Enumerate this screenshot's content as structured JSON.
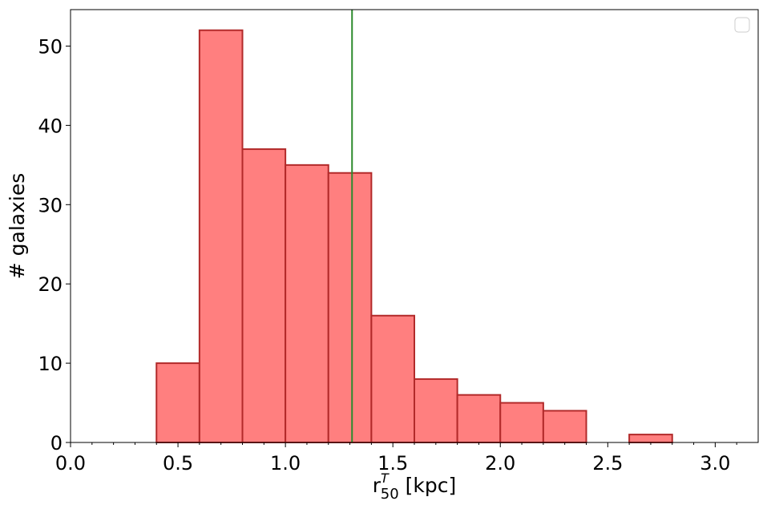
{
  "chart_data": {
    "type": "bar",
    "subtype": "histogram",
    "title": "",
    "xlabel": {
      "base": "r",
      "sup": "T",
      "sub": "50",
      "unit": " [kpc]"
    },
    "ylabel": "# galaxies",
    "xlim": [
      0.0,
      3.2
    ],
    "ylim": [
      0,
      54.6
    ],
    "bin_edges": [
      0.0,
      0.2,
      0.4,
      0.6,
      0.8,
      1.0,
      1.2,
      1.4,
      1.6,
      1.8,
      2.0,
      2.2,
      2.4,
      2.6,
      2.8,
      3.0,
      3.2
    ],
    "counts": [
      0,
      0,
      10,
      52,
      37,
      35,
      34,
      16,
      8,
      6,
      5,
      4,
      0,
      1,
      0,
      0
    ],
    "x_ticks": [
      0.0,
      0.5,
      1.0,
      1.5,
      2.0,
      2.5,
      3.0
    ],
    "x_tick_labels": [
      "0.0",
      "0.5",
      "1.0",
      "1.5",
      "2.0",
      "2.5",
      "3.0"
    ],
    "y_ticks": [
      0,
      10,
      20,
      30,
      40,
      50
    ],
    "y_tick_labels": [
      "0",
      "10",
      "20",
      "30",
      "40",
      "50"
    ],
    "vline": {
      "x": 1.31,
      "color": "#2e8b2e"
    },
    "bar_fill": "#ff7f7f",
    "bar_edge": "#b22a2a",
    "legend": {
      "position": "top-right",
      "entries": []
    },
    "grid": false
  }
}
